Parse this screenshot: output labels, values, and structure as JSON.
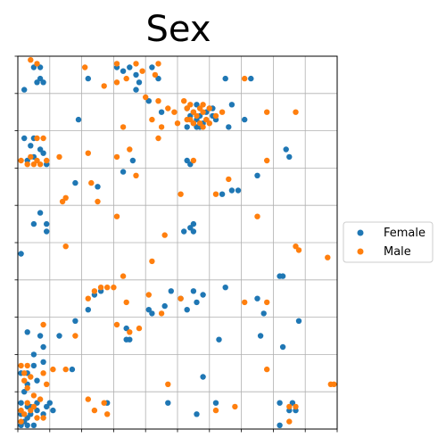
{
  "chart_data": {
    "type": "scatter",
    "title": "Sex",
    "xlabel": "",
    "ylabel": "",
    "xlim": [
      0,
      1
    ],
    "ylim": [
      0,
      1
    ],
    "grid": true,
    "grid_lines": 10,
    "legend_placement": "right",
    "series": [
      {
        "name": "Female",
        "color": "#1f77b4",
        "points": [
          [
            0.02,
            0.91
          ],
          [
            0.05,
            0.97
          ],
          [
            0.07,
            0.97
          ],
          [
            0.06,
            0.93
          ],
          [
            0.08,
            0.93
          ],
          [
            0.07,
            0.94
          ],
          [
            0.19,
            0.83
          ],
          [
            0.22,
            0.94
          ],
          [
            0.31,
            0.97
          ],
          [
            0.35,
            0.97
          ],
          [
            0.37,
            0.95
          ],
          [
            0.38,
            0.93
          ],
          [
            0.37,
            0.91
          ],
          [
            0.33,
            0.96
          ],
          [
            0.42,
            0.97
          ],
          [
            0.44,
            0.94
          ],
          [
            0.41,
            0.88
          ],
          [
            0.45,
            0.85
          ],
          [
            0.53,
            0.86
          ],
          [
            0.55,
            0.85
          ],
          [
            0.57,
            0.84
          ],
          [
            0.59,
            0.85
          ],
          [
            0.6,
            0.86
          ],
          [
            0.61,
            0.84
          ],
          [
            0.54,
            0.84
          ],
          [
            0.56,
            0.83
          ],
          [
            0.58,
            0.82
          ],
          [
            0.55,
            0.82
          ],
          [
            0.62,
            0.83
          ],
          [
            0.56,
            0.81
          ],
          [
            0.53,
            0.81
          ],
          [
            0.56,
            0.87
          ],
          [
            0.61,
            0.86
          ],
          [
            0.57,
            0.81
          ],
          [
            0.66,
            0.81
          ],
          [
            0.71,
            0.83
          ],
          [
            0.67,
            0.87
          ],
          [
            0.65,
            0.94
          ],
          [
            0.73,
            0.94
          ],
          [
            0.02,
            0.78
          ],
          [
            0.05,
            0.78
          ],
          [
            0.04,
            0.76
          ],
          [
            0.07,
            0.75
          ],
          [
            0.03,
            0.72
          ],
          [
            0.08,
            0.74
          ],
          [
            0.05,
            0.73
          ],
          [
            0.09,
            0.71
          ],
          [
            0.18,
            0.66
          ],
          [
            0.25,
            0.65
          ],
          [
            0.33,
            0.69
          ],
          [
            0.36,
            0.72
          ],
          [
            0.53,
            0.72
          ],
          [
            0.54,
            0.71
          ],
          [
            0.69,
            0.64
          ],
          [
            0.64,
            0.63
          ],
          [
            0.67,
            0.64
          ],
          [
            0.75,
            0.68
          ],
          [
            0.84,
            0.75
          ],
          [
            0.85,
            0.73
          ],
          [
            0.07,
            0.58
          ],
          [
            0.05,
            0.55
          ],
          [
            0.09,
            0.55
          ],
          [
            0.09,
            0.53
          ],
          [
            0.54,
            0.54
          ],
          [
            0.55,
            0.53
          ],
          [
            0.55,
            0.55
          ],
          [
            0.52,
            0.53
          ],
          [
            0.01,
            0.47
          ],
          [
            0.82,
            0.41
          ],
          [
            0.83,
            0.41
          ],
          [
            0.24,
            0.36
          ],
          [
            0.26,
            0.37
          ],
          [
            0.48,
            0.37
          ],
          [
            0.51,
            0.35
          ],
          [
            0.55,
            0.37
          ],
          [
            0.58,
            0.36
          ],
          [
            0.46,
            0.33
          ],
          [
            0.53,
            0.32
          ],
          [
            0.41,
            0.32
          ],
          [
            0.42,
            0.31
          ],
          [
            0.56,
            0.34
          ],
          [
            0.65,
            0.38
          ],
          [
            0.75,
            0.35
          ],
          [
            0.77,
            0.31
          ],
          [
            0.22,
            0.32
          ],
          [
            0.18,
            0.29
          ],
          [
            0.13,
            0.25
          ],
          [
            0.03,
            0.26
          ],
          [
            0.07,
            0.25
          ],
          [
            0.08,
            0.22
          ],
          [
            0.05,
            0.2
          ],
          [
            0.34,
            0.27
          ],
          [
            0.34,
            0.24
          ],
          [
            0.35,
            0.24
          ],
          [
            0.17,
            0.16
          ],
          [
            0.63,
            0.24
          ],
          [
            0.76,
            0.25
          ],
          [
            0.83,
            0.22
          ],
          [
            0.88,
            0.29
          ],
          [
            0.01,
            0.15
          ],
          [
            0.03,
            0.15
          ],
          [
            0.05,
            0.17
          ],
          [
            0.08,
            0.18
          ],
          [
            0.06,
            0.13
          ],
          [
            0.03,
            0.12
          ],
          [
            0.02,
            0.1
          ],
          [
            0.01,
            0.07
          ],
          [
            0.03,
            0.06
          ],
          [
            0.06,
            0.07
          ],
          [
            0.09,
            0.06
          ],
          [
            0.1,
            0.07
          ],
          [
            0.04,
            0.06
          ],
          [
            0.06,
            0.05
          ],
          [
            0.08,
            0.04
          ],
          [
            0.01,
            0.04
          ],
          [
            0.04,
            0.04
          ],
          [
            0.03,
            0.03
          ],
          [
            0.02,
            0.02
          ],
          [
            0.01,
            0.01
          ],
          [
            0.03,
            0.01
          ],
          [
            0.05,
            0.01
          ],
          [
            0.11,
            0.05
          ],
          [
            0.28,
            0.07
          ],
          [
            0.58,
            0.14
          ],
          [
            0.47,
            0.07
          ],
          [
            0.62,
            0.07
          ],
          [
            0.56,
            0.04
          ],
          [
            0.82,
            0.07
          ],
          [
            0.86,
            0.07
          ],
          [
            0.85,
            0.05
          ],
          [
            0.87,
            0.05
          ],
          [
            0.82,
            0.01
          ]
        ]
      },
      {
        "name": "Male",
        "color": "#ff7f0e",
        "points": [
          [
            0.04,
            0.99
          ],
          [
            0.06,
            0.98
          ],
          [
            0.21,
            0.97
          ],
          [
            0.27,
            0.92
          ],
          [
            0.31,
            0.93
          ],
          [
            0.31,
            0.98
          ],
          [
            0.37,
            0.98
          ],
          [
            0.34,
            0.94
          ],
          [
            0.39,
            0.96
          ],
          [
            0.43,
            0.95
          ],
          [
            0.44,
            0.98
          ],
          [
            0.4,
            0.89
          ],
          [
            0.44,
            0.88
          ],
          [
            0.47,
            0.86
          ],
          [
            0.49,
            0.85
          ],
          [
            0.52,
            0.88
          ],
          [
            0.53,
            0.86
          ],
          [
            0.54,
            0.83
          ],
          [
            0.55,
            0.85
          ],
          [
            0.56,
            0.84
          ],
          [
            0.57,
            0.86
          ],
          [
            0.58,
            0.85
          ],
          [
            0.59,
            0.83
          ],
          [
            0.55,
            0.82
          ],
          [
            0.57,
            0.82
          ],
          [
            0.58,
            0.81
          ],
          [
            0.6,
            0.82
          ],
          [
            0.54,
            0.87
          ],
          [
            0.58,
            0.87
          ],
          [
            0.6,
            0.86
          ],
          [
            0.62,
            0.84
          ],
          [
            0.53,
            0.83
          ],
          [
            0.64,
            0.85
          ],
          [
            0.71,
            0.94
          ],
          [
            0.78,
            0.85
          ],
          [
            0.87,
            0.85
          ],
          [
            0.5,
            0.82
          ],
          [
            0.44,
            0.78
          ],
          [
            0.33,
            0.81
          ],
          [
            0.45,
            0.81
          ],
          [
            0.42,
            0.83
          ],
          [
            0.35,
            0.75
          ],
          [
            0.31,
            0.73
          ],
          [
            0.22,
            0.74
          ],
          [
            0.13,
            0.73
          ],
          [
            0.06,
            0.78
          ],
          [
            0.08,
            0.78
          ],
          [
            0.01,
            0.72
          ],
          [
            0.03,
            0.71
          ],
          [
            0.07,
            0.71
          ],
          [
            0.09,
            0.72
          ],
          [
            0.04,
            0.73
          ],
          [
            0.06,
            0.72
          ],
          [
            0.05,
            0.71
          ],
          [
            0.23,
            0.66
          ],
          [
            0.15,
            0.62
          ],
          [
            0.14,
            0.61
          ],
          [
            0.25,
            0.61
          ],
          [
            0.37,
            0.68
          ],
          [
            0.31,
            0.57
          ],
          [
            0.46,
            0.52
          ],
          [
            0.51,
            0.63
          ],
          [
            0.55,
            0.72
          ],
          [
            0.62,
            0.63
          ],
          [
            0.66,
            0.67
          ],
          [
            0.75,
            0.57
          ],
          [
            0.78,
            0.72
          ],
          [
            0.87,
            0.49
          ],
          [
            0.88,
            0.48
          ],
          [
            0.97,
            0.46
          ],
          [
            0.15,
            0.49
          ],
          [
            0.42,
            0.45
          ],
          [
            0.33,
            0.41
          ],
          [
            0.26,
            0.38
          ],
          [
            0.28,
            0.38
          ],
          [
            0.24,
            0.37
          ],
          [
            0.22,
            0.35
          ],
          [
            0.3,
            0.38
          ],
          [
            0.34,
            0.34
          ],
          [
            0.41,
            0.36
          ],
          [
            0.45,
            0.31
          ],
          [
            0.51,
            0.35
          ],
          [
            0.71,
            0.34
          ],
          [
            0.78,
            0.34
          ],
          [
            0.08,
            0.28
          ],
          [
            0.31,
            0.28
          ],
          [
            0.35,
            0.26
          ],
          [
            0.38,
            0.27
          ],
          [
            0.18,
            0.25
          ],
          [
            0.03,
            0.17
          ],
          [
            0.01,
            0.17
          ],
          [
            0.02,
            0.15
          ],
          [
            0.04,
            0.14
          ],
          [
            0.08,
            0.15
          ],
          [
            0.11,
            0.16
          ],
          [
            0.15,
            0.16
          ],
          [
            0.02,
            0.13
          ],
          [
            0.03,
            0.11
          ],
          [
            0.09,
            0.12
          ],
          [
            0.05,
            0.09
          ],
          [
            0.07,
            0.08
          ],
          [
            0.03,
            0.07
          ],
          [
            0.05,
            0.06
          ],
          [
            0.01,
            0.05
          ],
          [
            0.04,
            0.05
          ],
          [
            0.02,
            0.04
          ],
          [
            0.08,
            0.03
          ],
          [
            0.06,
            0.03
          ],
          [
            0.01,
            0.02
          ],
          [
            0.22,
            0.08
          ],
          [
            0.27,
            0.07
          ],
          [
            0.24,
            0.05
          ],
          [
            0.28,
            0.04
          ],
          [
            0.47,
            0.12
          ],
          [
            0.62,
            0.05
          ],
          [
            0.68,
            0.06
          ],
          [
            0.78,
            0.16
          ],
          [
            0.85,
            0.06
          ],
          [
            0.87,
            0.06
          ],
          [
            0.85,
            0.02
          ],
          [
            0.98,
            0.12
          ],
          [
            0.99,
            0.12
          ]
        ]
      }
    ]
  }
}
